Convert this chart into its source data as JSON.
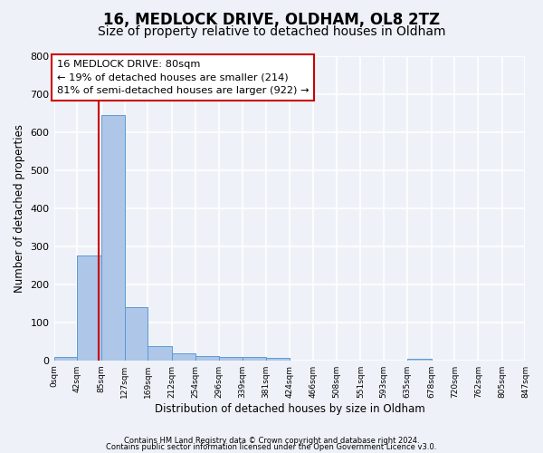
{
  "title": "16, MEDLOCK DRIVE, OLDHAM, OL8 2TZ",
  "subtitle": "Size of property relative to detached houses in Oldham",
  "xlabel": "Distribution of detached houses by size in Oldham",
  "ylabel": "Number of detached properties",
  "bar_edges": [
    0,
    42,
    85,
    127,
    169,
    212,
    254,
    296,
    339,
    381,
    424,
    466,
    508,
    551,
    593,
    635,
    678,
    720,
    762,
    805,
    847
  ],
  "bar_values": [
    8,
    275,
    645,
    140,
    38,
    18,
    12,
    10,
    8,
    7,
    0,
    0,
    0,
    0,
    0,
    5,
    0,
    0,
    0,
    0
  ],
  "bar_color": "#aec6e8",
  "bar_edge_color": "#5b9bd5",
  "vline_x": 80,
  "vline_color": "#cc0000",
  "ylim": [
    0,
    800
  ],
  "yticks": [
    0,
    100,
    200,
    300,
    400,
    500,
    600,
    700,
    800
  ],
  "annotation_text": "16 MEDLOCK DRIVE: 80sqm\n← 19% of detached houses are smaller (214)\n81% of semi-detached houses are larger (922) →",
  "annotation_box_color": "#cc0000",
  "footer_line1": "Contains HM Land Registry data © Crown copyright and database right 2024.",
  "footer_line2": "Contains public sector information licensed under the Open Government Licence v3.0.",
  "bg_color": "#eef2f8",
  "grid_color": "#ffffff",
  "title_fontsize": 12,
  "subtitle_fontsize": 10
}
